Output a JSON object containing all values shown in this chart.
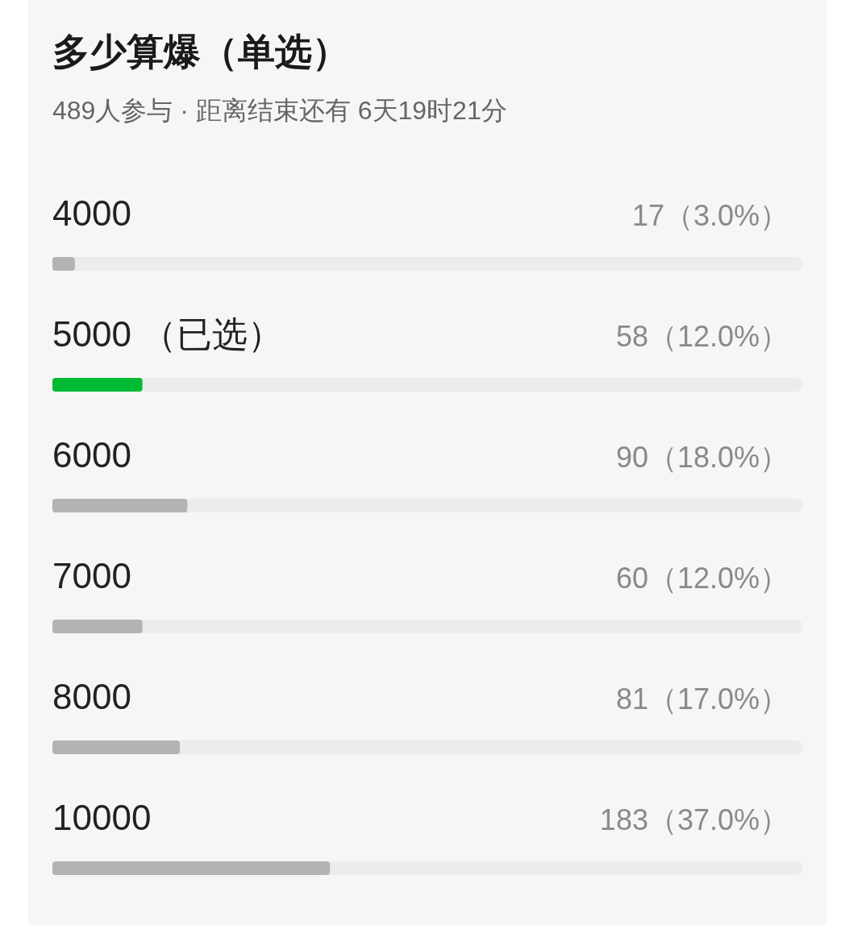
{
  "chart_data": {
    "type": "bar",
    "orientation": "horizontal",
    "title": "多少算爆（单选）",
    "subtitle": "489人参与 · 距离结束还有 6天19时21分",
    "categories": [
      "4000",
      "5000 （已选）",
      "6000",
      "7000",
      "8000",
      "10000"
    ],
    "values": [
      3.0,
      12.0,
      18.0,
      12.0,
      17.0,
      37.0
    ],
    "colors": [
      "#b3b3b3",
      "#00bb33",
      "#b3b3b3",
      "#b3b3b3",
      "#b3b3b3",
      "#b3b3b3"
    ],
    "value_labels": [
      "17（3.0%）",
      "58（12.0%）",
      "90（18.0%）",
      "60（12.0%）",
      "81（17.0%）",
      "183（37.0%）"
    ],
    "xlim": [
      0,
      100
    ]
  }
}
